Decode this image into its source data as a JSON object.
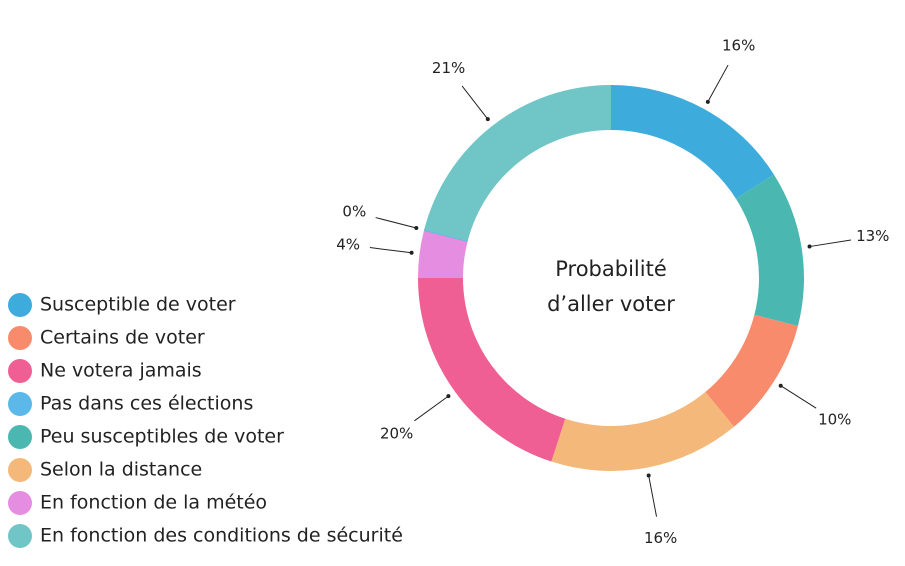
{
  "chart_data": {
    "type": "donut",
    "title_lines": [
      "Probabilité",
      "d’aller voter"
    ],
    "categories": [
      "Susceptible de voter",
      "Peu susceptibles de voter",
      "Certains de voter",
      "Selon la distance",
      "Ne votera jamais",
      "En fonction de la météo",
      "Pas dans ces élections",
      "En fonction des conditions de sécurité"
    ],
    "values": [
      16,
      13,
      10,
      16,
      20,
      4,
      0,
      21
    ],
    "value_labels": [
      "16%",
      "13%",
      "10%",
      "16%",
      "20%",
      "4%",
      "0%",
      "21%"
    ],
    "colors": [
      "#3dacdc",
      "#4bb7b1",
      "#f98b6d",
      "#f5b87b",
      "#ef5f93",
      "#e58de0",
      "#5bb8e8",
      "#70c6c6"
    ],
    "legend": [
      {
        "label": "Susceptible de voter",
        "color": "#3dacdc"
      },
      {
        "label": "Certains de voter",
        "color": "#f98b6d"
      },
      {
        "label": "Ne votera jamais",
        "color": "#ef5f93"
      },
      {
        "label": "Pas dans ces élections",
        "color": "#5bb8e8"
      },
      {
        "label": "Peu susceptibles de voter",
        "color": "#4bb7b1"
      },
      {
        "label": "Selon la distance",
        "color": "#f5b87b"
      },
      {
        "label": "En fonction de la météo",
        "color": "#e58de0"
      },
      {
        "label": "En fonction des conditions de sécurité",
        "color": "#70c6c6"
      }
    ]
  }
}
